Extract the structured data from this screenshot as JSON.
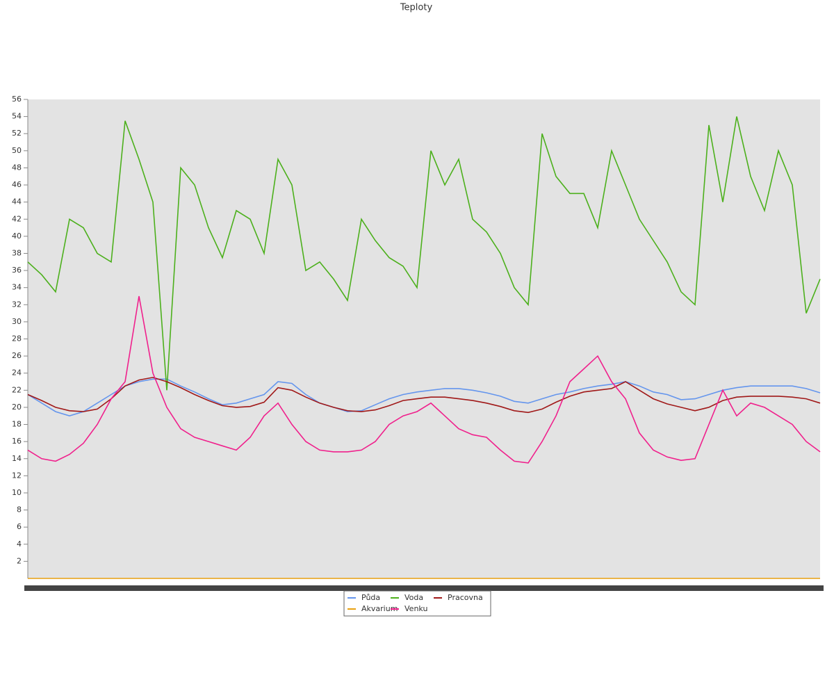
{
  "chart_data": {
    "type": "line",
    "title": "Teploty",
    "ylim": [
      0,
      56
    ],
    "yticks": [
      2,
      4,
      6,
      8,
      10,
      12,
      14,
      16,
      18,
      20,
      22,
      24,
      26,
      28,
      30,
      32,
      34,
      36,
      38,
      40,
      42,
      44,
      46,
      48,
      50,
      52,
      54,
      56
    ],
    "legend": "bottom",
    "categories": [
      null,
      null,
      null,
      null,
      null,
      null,
      null,
      null,
      null,
      null,
      null,
      null,
      null,
      null,
      null,
      null,
      null,
      null,
      null,
      null,
      null,
      null,
      null,
      null,
      null,
      null,
      null,
      null,
      null,
      null,
      null,
      null,
      null,
      null,
      null,
      null,
      null,
      null,
      null,
      null,
      null,
      null,
      null,
      null,
      null,
      null,
      null,
      null,
      null,
      null,
      null,
      null,
      null,
      null,
      null,
      null,
      null,
      null
    ],
    "series": [
      {
        "name": "Půda",
        "color": "#6495ed",
        "values": [
          21.5,
          20.5,
          19.5,
          19,
          19.5,
          20.5,
          21.5,
          22.5,
          23,
          23.3,
          23.3,
          22.5,
          21.8,
          21,
          20.3,
          20.5,
          21,
          21.5,
          23,
          22.8,
          21.5,
          20.5,
          20,
          19.5,
          19.6,
          20.3,
          21,
          21.5,
          21.8,
          22,
          22.2,
          22.2,
          22,
          21.7,
          21.3,
          20.7,
          20.5,
          21,
          21.5,
          21.8,
          22.2,
          22.5,
          22.7,
          23,
          22.5,
          21.8,
          21.5,
          20.9,
          21,
          21.5,
          22,
          22.3,
          22.5,
          22.5,
          22.5,
          22.5,
          22.2,
          21.7
        ]
      },
      {
        "name": "Voda",
        "color": "#4cb01c",
        "values": [
          37,
          35.5,
          33.5,
          42,
          41,
          38,
          37,
          53.5,
          49,
          44,
          22,
          48,
          46,
          41,
          37.5,
          43,
          42,
          38,
          49,
          46,
          36,
          37,
          35,
          32.5,
          42,
          39.5,
          37.5,
          36.5,
          34,
          50,
          46,
          49,
          42,
          40.5,
          38,
          34,
          32,
          52,
          47,
          45,
          45,
          41,
          50,
          46,
          42,
          39.5,
          37,
          33.5,
          32,
          53,
          44,
          54,
          47,
          43,
          50,
          46,
          31,
          35
        ]
      },
      {
        "name": "Pracovna",
        "color": "#a01818",
        "values": [
          21.5,
          20.8,
          20,
          19.6,
          19.5,
          19.8,
          21,
          22.5,
          23.2,
          23.5,
          23,
          22.3,
          21.5,
          20.8,
          20.2,
          20,
          20.1,
          20.6,
          22.3,
          22,
          21.2,
          20.5,
          20,
          19.6,
          19.5,
          19.7,
          20.2,
          20.8,
          21,
          21.2,
          21.2,
          21,
          20.8,
          20.5,
          20.1,
          19.6,
          19.4,
          19.8,
          20.6,
          21.3,
          21.8,
          22,
          22.2,
          23,
          22,
          21,
          20.4,
          20,
          19.6,
          20,
          20.8,
          21.2,
          21.3,
          21.3,
          21.3,
          21.2,
          21,
          20.5
        ]
      },
      {
        "name": "Akvarium",
        "color": "#e8a010",
        "values": [
          0,
          0,
          0,
          0,
          0,
          0,
          0,
          0,
          0,
          0,
          0,
          0,
          0,
          0,
          0,
          0,
          0,
          0,
          0,
          0,
          0,
          0,
          0,
          0,
          0,
          0,
          0,
          0,
          0,
          0,
          0,
          0,
          0,
          0,
          0,
          0,
          0,
          0,
          0,
          0,
          0,
          0,
          0,
          0,
          0,
          0,
          0,
          0,
          0,
          0,
          0,
          0,
          0,
          0,
          0,
          0,
          0,
          0
        ]
      },
      {
        "name": "Venku",
        "color": "#f0208c",
        "values": [
          15,
          14,
          13.7,
          14.5,
          15.8,
          18,
          21,
          23,
          33,
          24,
          20,
          17.5,
          16.5,
          16,
          15.5,
          15,
          16.5,
          19,
          20.5,
          18,
          16,
          15,
          14.8,
          14.8,
          15,
          16,
          18,
          19,
          19.5,
          20.5,
          19,
          17.5,
          16.8,
          16.5,
          15,
          13.7,
          13.5,
          16,
          19,
          23,
          24.5,
          26,
          23,
          21,
          17,
          15,
          14.2,
          13.8,
          14,
          18,
          22,
          19,
          20.5,
          20,
          19,
          18,
          16,
          14.8
        ]
      }
    ]
  }
}
